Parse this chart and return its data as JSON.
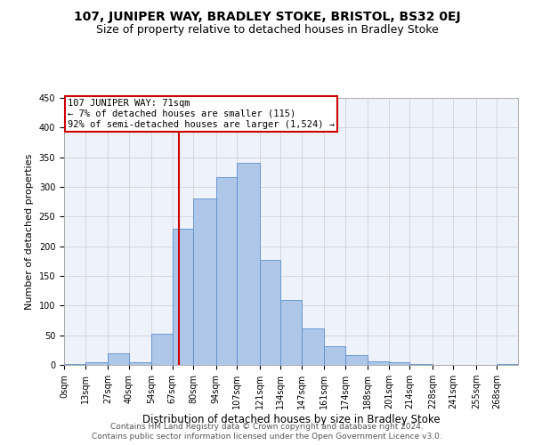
{
  "title1": "107, JUNIPER WAY, BRADLEY STOKE, BRISTOL, BS32 0EJ",
  "title2": "Size of property relative to detached houses in Bradley Stoke",
  "xlabel": "Distribution of detached houses by size in Bradley Stoke",
  "ylabel": "Number of detached properties",
  "bins": [
    "0sqm",
    "13sqm",
    "27sqm",
    "40sqm",
    "54sqm",
    "67sqm",
    "80sqm",
    "94sqm",
    "107sqm",
    "121sqm",
    "134sqm",
    "147sqm",
    "161sqm",
    "174sqm",
    "188sqm",
    "201sqm",
    "214sqm",
    "228sqm",
    "241sqm",
    "255sqm",
    "268sqm"
  ],
  "bin_edges": [
    0,
    13,
    27,
    40,
    54,
    67,
    80,
    94,
    107,
    121,
    134,
    147,
    161,
    174,
    188,
    201,
    214,
    228,
    241,
    255,
    268
  ],
  "values": [
    2,
    5,
    20,
    5,
    53,
    230,
    280,
    317,
    340,
    177,
    109,
    62,
    32,
    17,
    6,
    4,
    1,
    0,
    0,
    0,
    2
  ],
  "bar_color": "#aec6e8",
  "bar_edge_color": "#5b8fcc",
  "vline_x": 71,
  "vline_color": "#cc0000",
  "annotation_text": "107 JUNIPER WAY: 71sqm\n← 7% of detached houses are smaller (115)\n92% of semi-detached houses are larger (1,524) →",
  "annotation_box_color": "#ffffff",
  "annotation_box_edge": "#cc0000",
  "ylim": [
    0,
    450
  ],
  "yticks": [
    0,
    50,
    100,
    150,
    200,
    250,
    300,
    350,
    400,
    450
  ],
  "grid_color": "#cccccc",
  "bg_color": "#eef2fb",
  "footer1": "Contains HM Land Registry data © Crown copyright and database right 2024.",
  "footer2": "Contains public sector information licensed under the Open Government Licence v3.0.",
  "title1_fontsize": 10,
  "title2_fontsize": 9,
  "xlabel_fontsize": 8.5,
  "ylabel_fontsize": 8,
  "tick_fontsize": 7,
  "annotation_fontsize": 7.5,
  "footer_fontsize": 6.5
}
